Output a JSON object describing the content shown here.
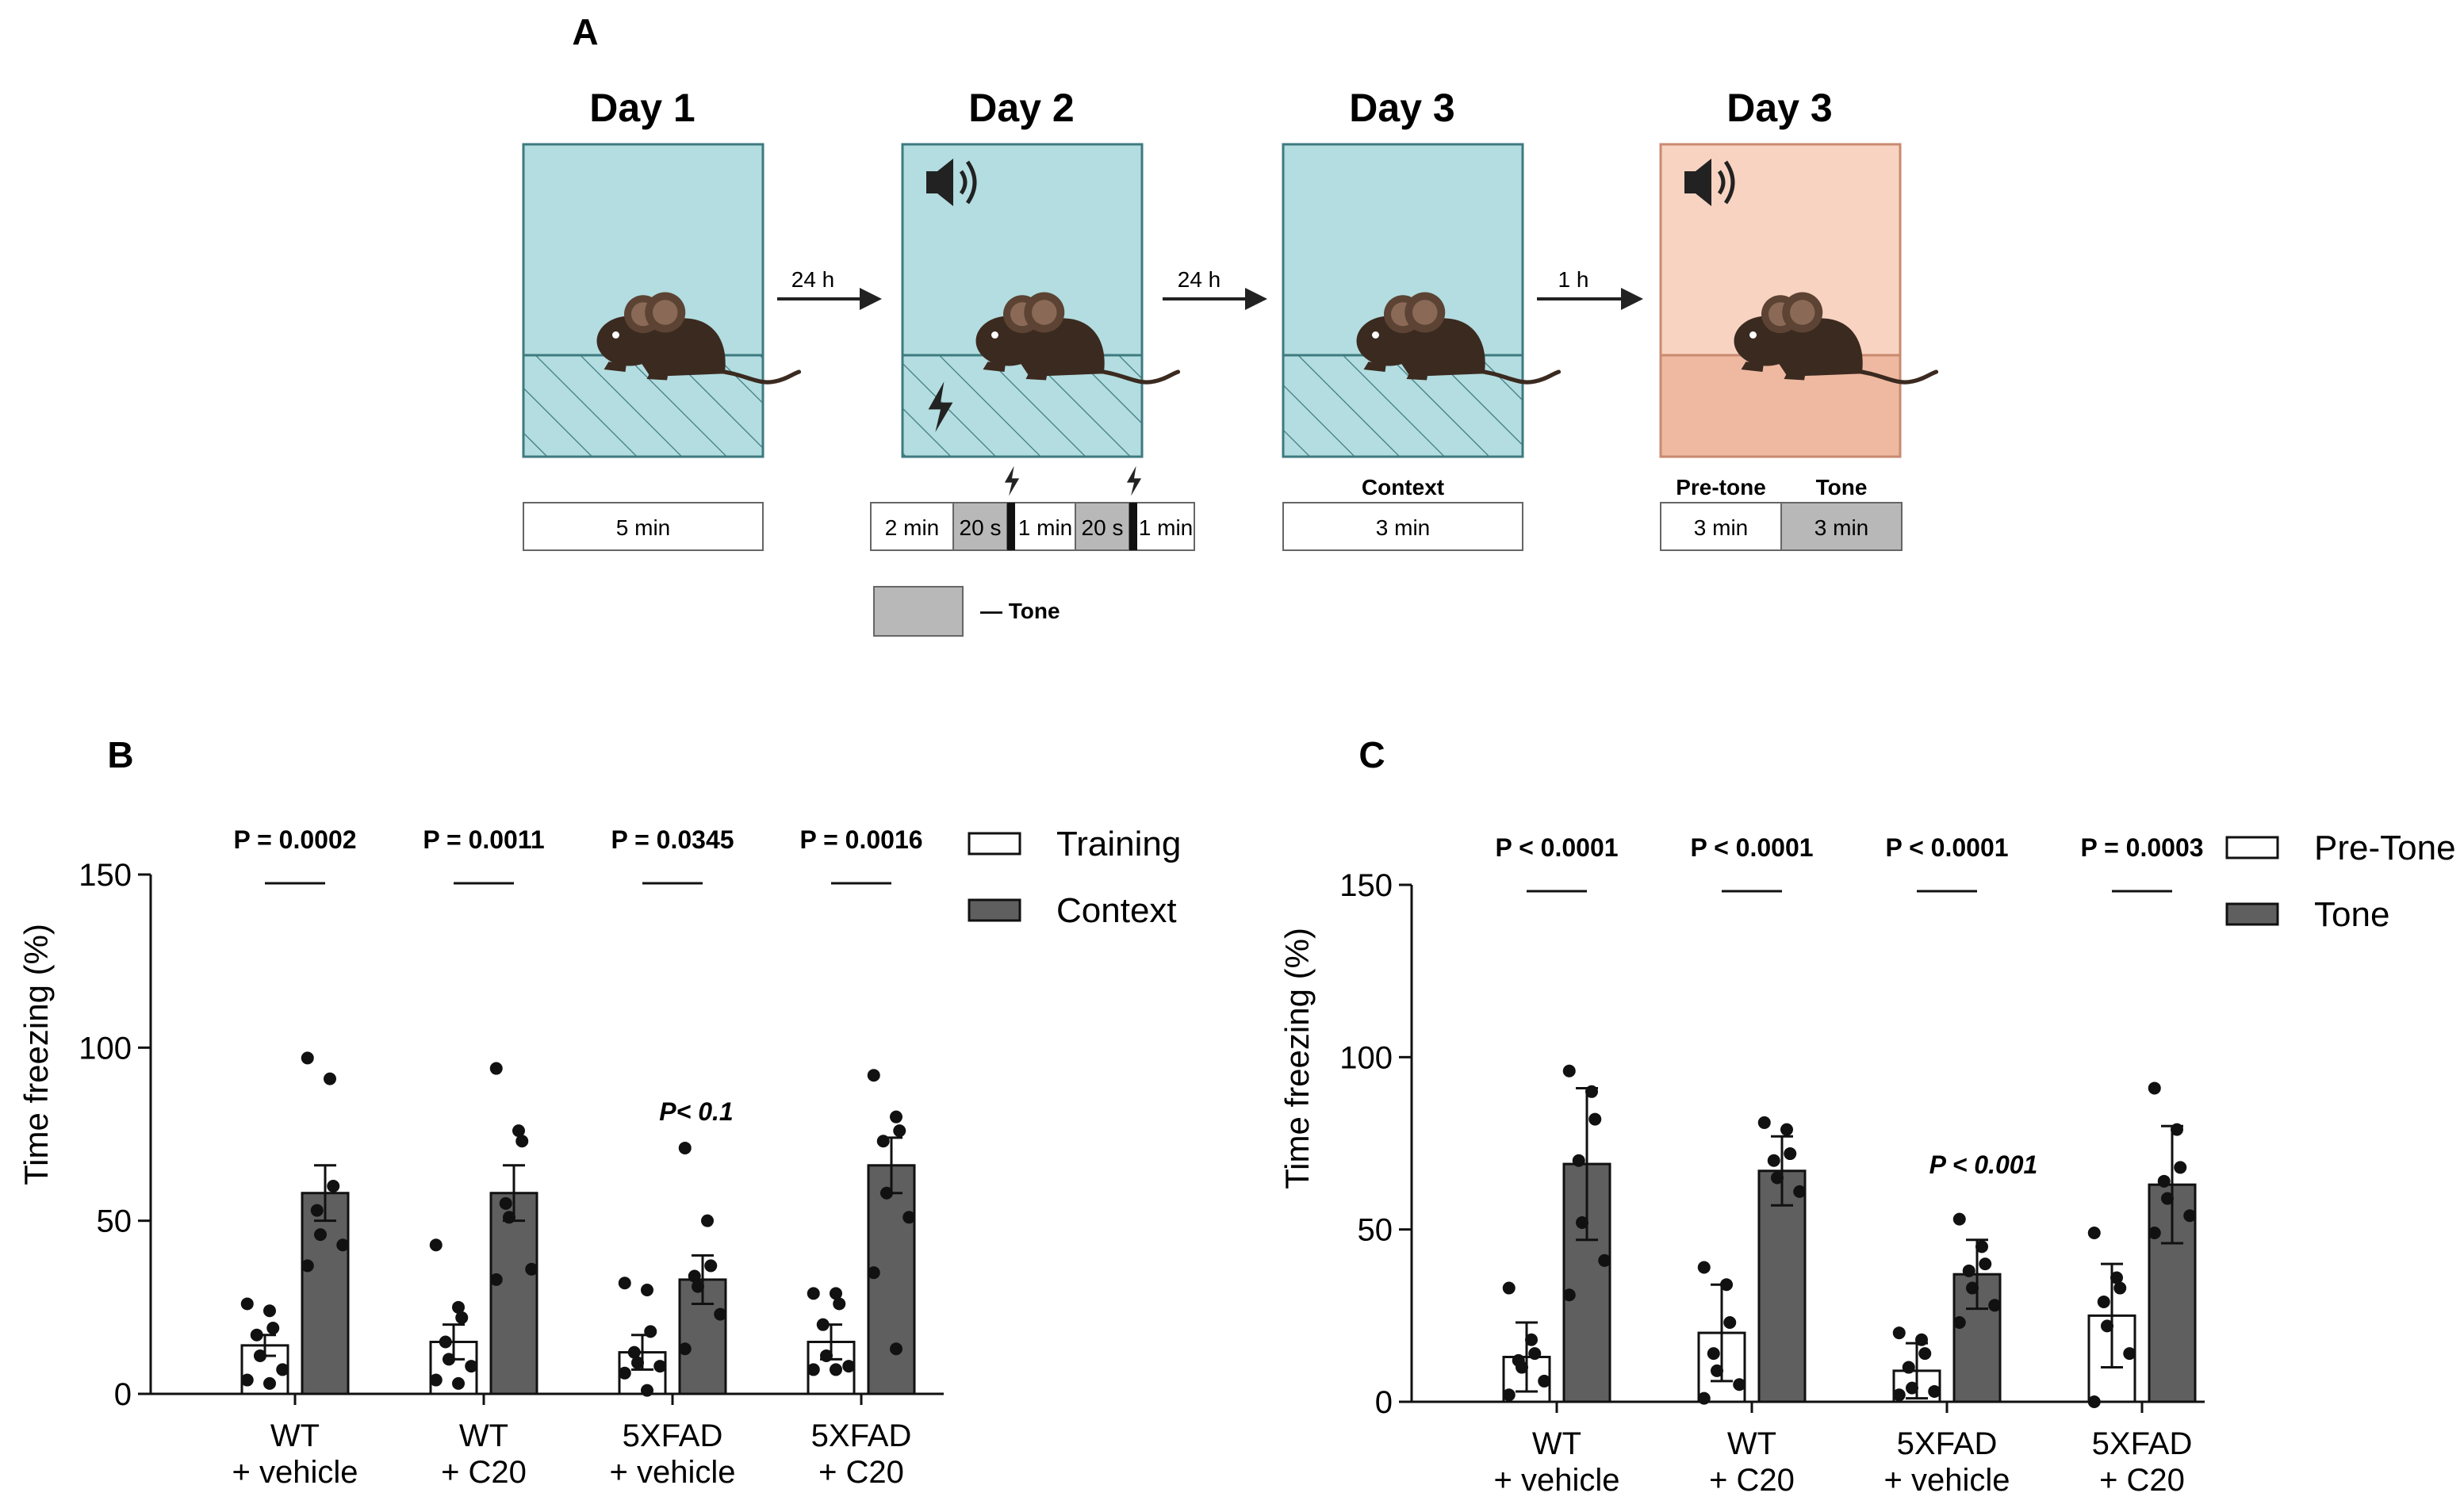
{
  "panelA": {
    "label": "A",
    "days": [
      "Day 1",
      "Day 2",
      "Day 3",
      "Day 3"
    ],
    "arrows": [
      "24 h",
      "24 h",
      "1 h"
    ],
    "day1_duration": "5 min",
    "day2_segments": [
      "2 min",
      "20 s",
      "1 min",
      "20 s",
      "1 min"
    ],
    "day3_context_label": "Context",
    "day3_context_duration": "3 min",
    "day3_tone_labels": [
      "Pre-tone",
      "Tone"
    ],
    "day3_tone_durations": [
      "3 min",
      "3 min"
    ],
    "tone_legend": "— Tone",
    "colors": {
      "box_blue": "#b3dde0",
      "box_orange": "#f8d3c1",
      "floor_orange": "#efb9a1",
      "mouse": "#3b2a20"
    }
  },
  "chart_data": [
    {
      "panel": "B",
      "type": "bar",
      "ylabel": "Time freezing (%)",
      "ylim": [
        0,
        150
      ],
      "yticks": [
        "0",
        "50",
        "100",
        "150"
      ],
      "categories": [
        [
          "WT",
          "+ vehicle"
        ],
        [
          "WT",
          "+ C20"
        ],
        [
          "5XFAD",
          "+ vehicle"
        ],
        [
          "5XFAD",
          "+ C20"
        ]
      ],
      "series": [
        {
          "name": "Training",
          "color": "#ffffff",
          "values": [
            14,
            15,
            12,
            15
          ],
          "errors": [
            3,
            5,
            5,
            5
          ],
          "points": [
            [
              26,
              24,
              19,
              17,
              11,
              7,
              4,
              3
            ],
            [
              43,
              25,
              22,
              15,
              10,
              8,
              4,
              3
            ],
            [
              32,
              30,
              18,
              12,
              9,
              8,
              6,
              1
            ],
            [
              29,
              29,
              26,
              20,
              11,
              8,
              7,
              7
            ]
          ]
        },
        {
          "name": "Context",
          "color": "#5f5f5f",
          "values": [
            58,
            58,
            33,
            66
          ],
          "errors": [
            8,
            8,
            7,
            8
          ],
          "points": [
            [
              97,
              91,
              60,
              53,
              46,
              43,
              37
            ],
            [
              94,
              76,
              73,
              55,
              51,
              36,
              33
            ],
            [
              71,
              50,
              37,
              34,
              31,
              23,
              13
            ],
            [
              92,
              80,
              76,
              73,
              58,
              51,
              35,
              13
            ]
          ]
        }
      ],
      "pvalues": [
        "P = 0.0002",
        "P = 0.0011",
        "P = 0.0345",
        "P = 0.0016"
      ],
      "annotation": {
        "text": "P< 0.1",
        "group": 2
      },
      "legend": [
        "Training",
        "Context"
      ]
    },
    {
      "panel": "C",
      "type": "bar",
      "ylabel": "Time freezing (%)",
      "ylim": [
        0,
        150
      ],
      "yticks": [
        "0",
        "50",
        "100",
        "150"
      ],
      "categories": [
        [
          "WT",
          "+ vehicle"
        ],
        [
          "WT",
          "+ C20"
        ],
        [
          "5XFAD",
          "+ vehicle"
        ],
        [
          "5XFAD",
          "+ C20"
        ]
      ],
      "series": [
        {
          "name": "Pre-Tone",
          "color": "#ffffff",
          "values": [
            13,
            20,
            9,
            25
          ],
          "errors": [
            10,
            14,
            8,
            15
          ],
          "points": [
            [
              33,
              18,
              14,
              12,
              10,
              6,
              2
            ],
            [
              39,
              34,
              23,
              14,
              9,
              5,
              1
            ],
            [
              20,
              18,
              14,
              10,
              4,
              3,
              2
            ],
            [
              49,
              36,
              33,
              29,
              22,
              14,
              0
            ]
          ]
        },
        {
          "name": "Tone",
          "color": "#5f5f5f",
          "values": [
            69,
            67,
            37,
            63
          ],
          "errors": [
            22,
            10,
            10,
            17
          ],
          "points": [
            [
              96,
              90,
              82,
              70,
              52,
              41,
              31
            ],
            [
              81,
              79,
              72,
              70,
              65,
              61
            ],
            [
              53,
              45,
              40,
              38,
              33,
              28,
              23
            ],
            [
              91,
              79,
              68,
              64,
              59,
              54,
              49
            ]
          ]
        }
      ],
      "pvalues": [
        "P < 0.0001",
        "P < 0.0001",
        "P < 0.0001",
        "P = 0.0003"
      ],
      "annotation": {
        "text": "P < 0.001",
        "group": 2
      },
      "legend": [
        "Pre-Tone",
        "Tone"
      ]
    }
  ]
}
